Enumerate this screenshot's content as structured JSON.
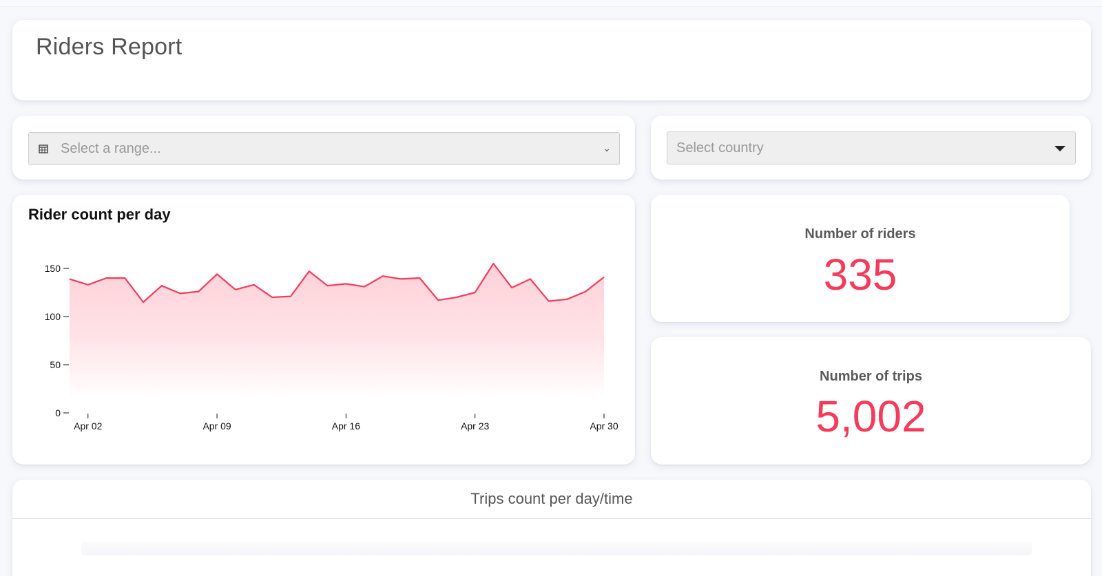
{
  "header": {
    "title": "Riders Report"
  },
  "filters": {
    "date_range": {
      "placeholder": "Select a range...",
      "icon": "calendar-icon",
      "chevron": "⌄"
    },
    "country": {
      "placeholder": "Select country",
      "icon": "caret-down-icon"
    }
  },
  "rider_chart": {
    "title": "Rider count per day"
  },
  "kpis": {
    "riders": {
      "label": "Number of riders",
      "value": "335"
    },
    "trips": {
      "label": "Number of trips",
      "value": "5,002"
    }
  },
  "trips_panel": {
    "title": "Trips count per day/time"
  },
  "colors": {
    "accent": "#f43b5a",
    "area_fill": "#ffd3da",
    "text_muted": "#555555"
  },
  "chart_data": {
    "type": "area",
    "title": "Rider count per day",
    "xlabel": "",
    "ylabel": "",
    "x": [
      "Apr 01",
      "Apr 02",
      "Apr 03",
      "Apr 04",
      "Apr 05",
      "Apr 06",
      "Apr 07",
      "Apr 08",
      "Apr 09",
      "Apr 10",
      "Apr 11",
      "Apr 12",
      "Apr 13",
      "Apr 14",
      "Apr 15",
      "Apr 16",
      "Apr 17",
      "Apr 18",
      "Apr 19",
      "Apr 20",
      "Apr 21",
      "Apr 22",
      "Apr 23",
      "Apr 24",
      "Apr 25",
      "Apr 26",
      "Apr 27",
      "Apr 28",
      "Apr 29",
      "Apr 30"
    ],
    "values": [
      139,
      133,
      140,
      140,
      115,
      132,
      124,
      126,
      144,
      128,
      133,
      120,
      121,
      147,
      132,
      134,
      131,
      142,
      139,
      140,
      117,
      120,
      125,
      155,
      130,
      139,
      116,
      118,
      126,
      141
    ],
    "x_ticks": [
      "Apr 02",
      "Apr 09",
      "Apr 16",
      "Apr 23",
      "Apr 30"
    ],
    "y_ticks": [
      0,
      50,
      100,
      150
    ],
    "ylim": [
      0,
      160
    ],
    "grid": false,
    "legend": null,
    "line_color": "#f43b5a"
  }
}
